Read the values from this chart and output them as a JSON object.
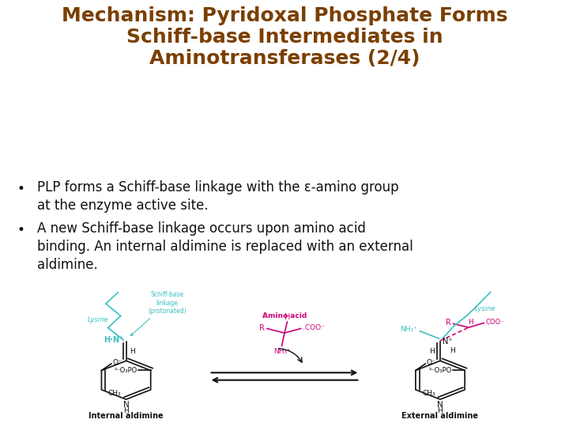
{
  "title_line1": "Mechanism: Pyridoxal Phosphate Forms",
  "title_line2": "Schiff-base Intermediates in",
  "title_line3": "Aminotransferases (2/4)",
  "title_color": "#7B3F00",
  "title_fontsize": 18,
  "bullet1_text": "PLP forms a Schiff-base linkage with the ε-amino group\nat the enzyme active site.",
  "bullet2_text": "A new Schiff-base linkage occurs upon amino acid\nbinding. An internal aldimine is replaced with an external\naldimine.",
  "bullet_color": "#111111",
  "bullet_fontsize": 12,
  "bg_color": "#FFFFFF",
  "cyan_color": "#3BBFBF",
  "magenta_color": "#CC0077",
  "dark_color": "#111111"
}
